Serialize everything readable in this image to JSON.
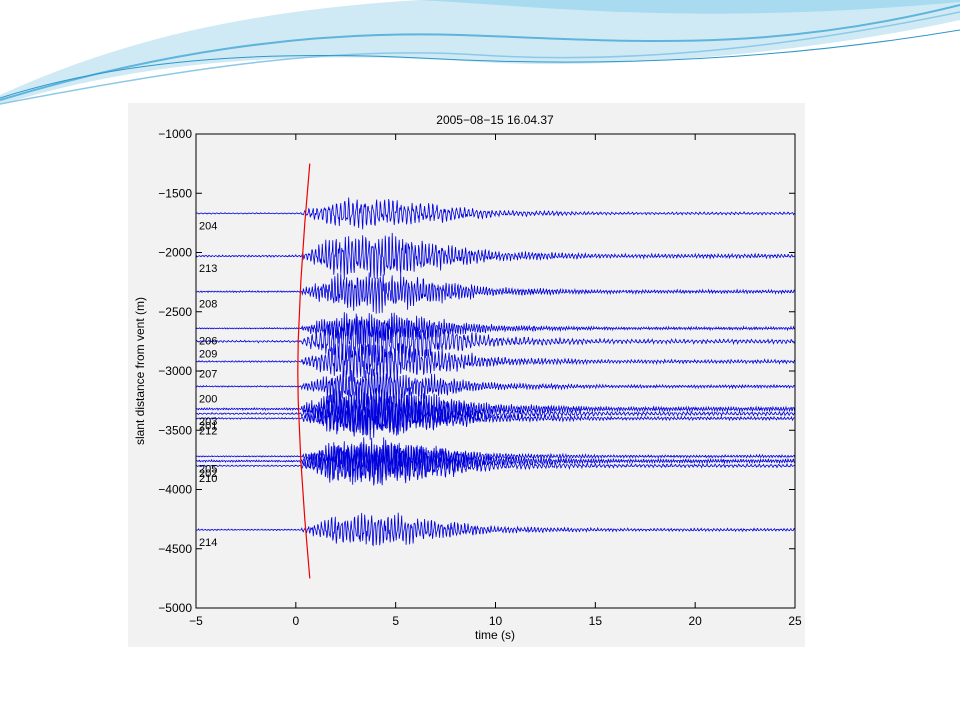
{
  "theme": {
    "trace_color": "#0000dd",
    "onset_curve_color": "#ee0000",
    "wave_decor_color": "#5fb4dc"
  },
  "chart_data": {
    "type": "line",
    "title": "2005−08−15 16.04.37",
    "xlabel": "time (s)",
    "ylabel": "slant distance from vent (m)",
    "xlim": [
      -5,
      25
    ],
    "ylim": [
      -5000,
      -1000
    ],
    "xticks": [
      -5,
      0,
      5,
      10,
      15,
      20,
      25
    ],
    "xtick_labels": [
      "−5",
      "0",
      "5",
      "10",
      "15",
      "20",
      "25"
    ],
    "yticks": [
      -1000,
      -1500,
      -2000,
      -2500,
      -3000,
      -3500,
      -4000,
      -4500,
      -5000
    ],
    "ytick_labels": [
      "−1000",
      "−1500",
      "−2000",
      "−2500",
      "−3000",
      "−3500",
      "−4000",
      "−4500",
      "−5000"
    ],
    "grid": false,
    "legend": false,
    "series": [
      {
        "name": "204",
        "distance": -1670
      },
      {
        "name": "213",
        "distance": -2030
      },
      {
        "name": "208",
        "distance": -2330
      },
      {
        "name": "206",
        "distance": -2640
      },
      {
        "name": "209",
        "distance": -2750
      },
      {
        "name": "207",
        "distance": -2920
      },
      {
        "name": "200",
        "distance": -3130
      },
      {
        "name": "203",
        "distance": -3320
      },
      {
        "name": "201",
        "distance": -3360
      },
      {
        "name": "212",
        "distance": -3400
      },
      {
        "name": "205",
        "distance": -3720
      },
      {
        "name": "202",
        "distance": -3760
      },
      {
        "name": "210",
        "distance": -3800
      },
      {
        "name": "214",
        "distance": -4340
      }
    ],
    "onset_curve": {
      "x": [
        0.7,
        0.45,
        0.25,
        0.12,
        0.1,
        0.12,
        0.25,
        0.45,
        0.7
      ],
      "y": [
        -1250,
        -1750,
        -2250,
        -2750,
        -3000,
        -3250,
        -3750,
        -4250,
        -4750
      ]
    }
  }
}
